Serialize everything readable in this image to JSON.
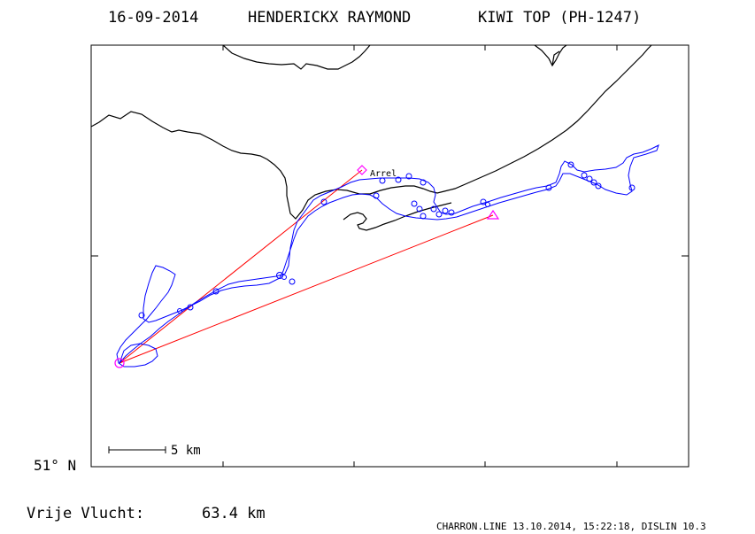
{
  "title": {
    "date": "16-09-2014",
    "pilot": "HENDERICKX RAYMOND",
    "glider": "KIWI TOP (PH-1247)"
  },
  "map": {
    "latitude_label": "51° N",
    "scale_label": "5 km",
    "waypoint_label": "Arrel",
    "colors": {
      "frame": "#000000",
      "coastline": "#000000",
      "track": "#0000ff",
      "task_line": "#ff0000",
      "start_marker": "#ff00ff",
      "turnpoint_marker": "#ff00ff",
      "finish_marker": "#ff00ff"
    },
    "markers": {
      "start": "circle",
      "turnpoint": "diamond",
      "finish": "triangle"
    }
  },
  "footer": {
    "free_flight_label": "Vrije Vlucht:",
    "free_flight_value": "63.4 km",
    "software_credit": "CHARRON.LINE 13.10.2014, 15:22:18, DISLIN 10.3"
  }
}
